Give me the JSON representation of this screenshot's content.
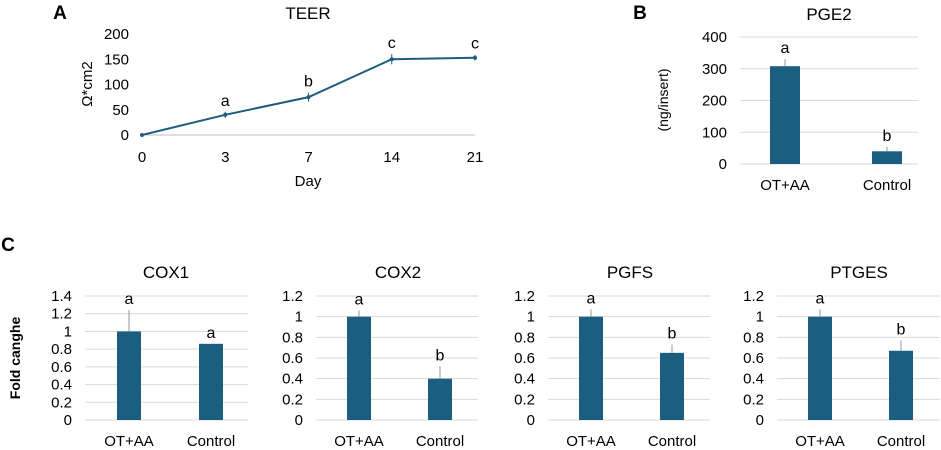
{
  "colors": {
    "bar": "#1b5e80",
    "line": "#1b5e80",
    "grid": "#d9d9d9",
    "error": "#9aa9b5"
  },
  "chart_data": [
    {
      "panel": "A",
      "type": "line",
      "title": "TEER",
      "x": [
        "0",
        "3",
        "7",
        "14",
        "21"
      ],
      "values": [
        0,
        40,
        75,
        150,
        153
      ],
      "errors": [
        0,
        6,
        9,
        10,
        6
      ],
      "letters": [
        "",
        "a",
        "b",
        "c",
        "c"
      ],
      "xlabel": "Day",
      "ylabel": "Ω*cm2",
      "ylim": [
        0,
        200
      ],
      "yticks": [
        "0",
        "50",
        "100",
        "150",
        "200"
      ],
      "grid": false
    },
    {
      "panel": "B",
      "type": "bar",
      "title": "PGE2",
      "categories": [
        "OT+AA",
        "Control"
      ],
      "values": [
        308,
        40
      ],
      "errors": [
        22,
        14
      ],
      "letters": [
        "a",
        "b"
      ],
      "xlabel": "",
      "ylabel": "(ng/insert)",
      "ylim": [
        0,
        400
      ],
      "yticks": [
        "0",
        "100",
        "200",
        "300",
        "400"
      ],
      "grid": true
    },
    {
      "panel": "C",
      "type": "bar",
      "title": "COX1",
      "categories": [
        "OT+AA",
        "Control"
      ],
      "values": [
        1.0,
        0.86
      ],
      "errors": [
        0.24,
        0.0
      ],
      "letters": [
        "a",
        "a"
      ],
      "ylabel": "Fold canghe",
      "ylim": [
        0,
        1.4
      ],
      "yticks": [
        "0",
        "0.2",
        "0.4",
        "0.6",
        "0.8",
        "1",
        "1.2",
        "1.4"
      ],
      "grid": true
    },
    {
      "panel": "",
      "type": "bar",
      "title": "COX2",
      "categories": [
        "OT+AA",
        "Control"
      ],
      "values": [
        1.0,
        0.4
      ],
      "errors": [
        0.06,
        0.12
      ],
      "letters": [
        "a",
        "b"
      ],
      "ylim": [
        0,
        1.2
      ],
      "yticks": [
        "0",
        "0.2",
        "0.4",
        "0.6",
        "0.8",
        "1",
        "1.2"
      ],
      "grid": true
    },
    {
      "panel": "",
      "type": "bar",
      "title": "PGFS",
      "categories": [
        "OT+AA",
        "Control"
      ],
      "values": [
        1.0,
        0.65
      ],
      "errors": [
        0.07,
        0.08
      ],
      "letters": [
        "a",
        "b"
      ],
      "ylim": [
        0,
        1.2
      ],
      "yticks": [
        "0",
        "0.2",
        "0.4",
        "0.6",
        "0.8",
        "1",
        "1.2"
      ],
      "grid": true
    },
    {
      "panel": "",
      "type": "bar",
      "title": "PTGES",
      "categories": [
        "OT+AA",
        "Control"
      ],
      "values": [
        1.0,
        0.67
      ],
      "errors": [
        0.07,
        0.1
      ],
      "letters": [
        "a",
        "b"
      ],
      "ylim": [
        0,
        1.2
      ],
      "yticks": [
        "0",
        "0.2",
        "0.4",
        "0.6",
        "0.8",
        "1",
        "1.2"
      ],
      "grid": true
    }
  ]
}
